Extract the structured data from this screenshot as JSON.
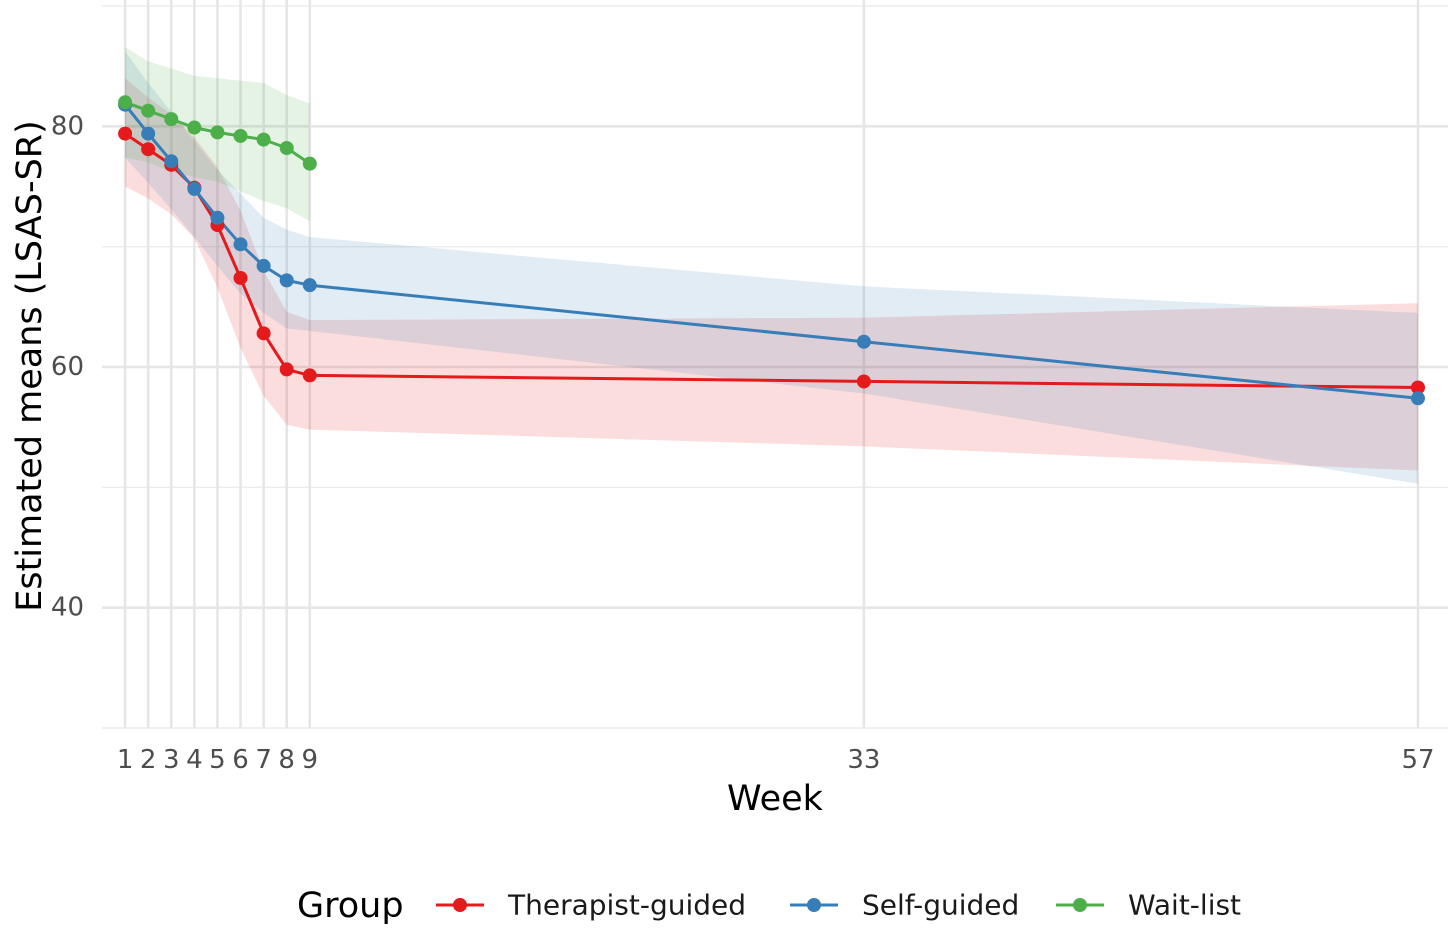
{
  "chart_data": {
    "type": "line",
    "xlabel": "Week",
    "ylabel": "Estimated means (LSAS-SR)",
    "x": [
      1,
      2,
      3,
      4,
      5,
      6,
      7,
      8,
      9,
      33,
      57
    ],
    "x_tick_labels": [
      "1",
      "2",
      "3",
      "4",
      "5",
      "6",
      "7",
      "8",
      "9",
      "33",
      "57"
    ],
    "xlim": [
      0,
      58.3
    ],
    "ylim": [
      30,
      90.5
    ],
    "y_ticks": [
      40,
      60,
      80
    ],
    "y_tick_labels": [
      "40",
      "60",
      "80"
    ],
    "y_minor_ticks": [
      30,
      50,
      70,
      90
    ],
    "grid": true,
    "legend": {
      "title": "Group",
      "position": "bottom"
    },
    "series": [
      {
        "name": "Therapist-guided",
        "color": "#e41a1c",
        "x": [
          1,
          2,
          3,
          4,
          5,
          6,
          7,
          8,
          9,
          33,
          57
        ],
        "values": [
          79.4,
          78.1,
          76.8,
          74.9,
          71.8,
          67.4,
          62.8,
          59.8,
          59.3,
          58.8,
          58.3
        ],
        "ci_lower": [
          75.0,
          74.0,
          72.7,
          70.7,
          66.6,
          61.6,
          57.6,
          55.2,
          54.8,
          53.4,
          51.4
        ],
        "ci_upper": [
          84.0,
          82.4,
          81.0,
          79.1,
          76.6,
          73.0,
          68.0,
          64.6,
          63.9,
          64.1,
          65.3
        ]
      },
      {
        "name": "Self-guided",
        "color": "#377eb8",
        "x": [
          1,
          2,
          3,
          4,
          5,
          6,
          7,
          8,
          9,
          33,
          57
        ],
        "values": [
          81.8,
          79.4,
          77.1,
          74.8,
          72.4,
          70.2,
          68.4,
          67.2,
          66.8,
          62.1,
          57.4
        ],
        "ci_lower": [
          77.4,
          75.3,
          73.1,
          70.8,
          68.4,
          66.1,
          64.5,
          63.2,
          63.0,
          57.8,
          50.3
        ],
        "ci_upper": [
          86.2,
          83.6,
          81.2,
          78.8,
          76.4,
          74.4,
          72.4,
          71.4,
          70.8,
          66.7,
          64.5
        ]
      },
      {
        "name": "Wait-list",
        "color": "#4daf4a",
        "x": [
          1,
          2,
          3,
          4,
          5,
          6,
          7,
          8,
          9
        ],
        "values": [
          82.0,
          81.3,
          80.6,
          79.9,
          79.5,
          79.2,
          78.9,
          78.2,
          76.9
        ],
        "ci_lower": [
          77.4,
          77.0,
          76.2,
          75.8,
          75.4,
          74.6,
          73.8,
          73.2,
          72.1
        ],
        "ci_upper": [
          86.6,
          85.4,
          84.8,
          84.2,
          84.0,
          83.8,
          83.6,
          82.6,
          81.9
        ]
      }
    ]
  }
}
